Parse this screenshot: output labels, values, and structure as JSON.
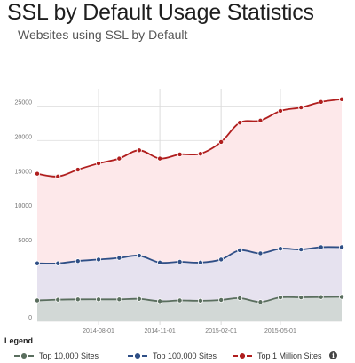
{
  "header": {
    "title": "SSL by Default Usage Statistics",
    "subtitle": "Websites using SSL by Default"
  },
  "legend": {
    "title": "Legend",
    "items": [
      {
        "label": "Top 10,000 Sites",
        "color": "#5a6e5e"
      },
      {
        "label": "Top 100,000 Sites",
        "color": "#2f4f86"
      },
      {
        "label": "Top 1 Million Sites",
        "color": "#b01e1e"
      }
    ],
    "info_icon": "info-icon"
  },
  "chart_data": {
    "type": "area",
    "x": [
      "2014-05-01",
      "2014-06-01",
      "2014-07-01",
      "2014-08-01",
      "2014-09-01",
      "2014-10-01",
      "2014-11-01",
      "2014-12-01",
      "2015-01-01",
      "2015-02-01",
      "2015-03-01",
      "2015-04-01",
      "2015-05-01",
      "2015-06-01",
      "2015-07-01",
      "2015-08-01"
    ],
    "x_ticks": [
      "2014-08-01",
      "2014-11-01",
      "2015-02-01",
      "2015-05-01"
    ],
    "y_ticks": [
      0,
      5000,
      10000,
      15000,
      20000,
      25000
    ],
    "ylim": [
      0,
      27000
    ],
    "series": [
      {
        "name": "Top 1 Million Sites",
        "color": "#b01e1e",
        "fill": "#fde8ea",
        "values": [
          15200,
          14800,
          15800,
          16700,
          17400,
          18600,
          17400,
          18000,
          18100,
          19800,
          22600,
          22900,
          24300,
          24800,
          25600,
          26000
        ]
      },
      {
        "name": "Top 100,000 Sites",
        "color": "#2f4f86",
        "fill": "#e6e2ef",
        "values": [
          3750,
          3750,
          3900,
          4000,
          4100,
          4250,
          3800,
          3850,
          3800,
          4000,
          4600,
          4400,
          4700,
          4650,
          4800,
          4800
        ]
      },
      {
        "name": "Top 10,000 Sites",
        "color": "#5a6e5e",
        "fill": "#d2d8d6",
        "values": [
          1350,
          1400,
          1420,
          1420,
          1420,
          1450,
          1300,
          1350,
          1330,
          1380,
          1500,
          1250,
          1550,
          1550,
          1570,
          1580
        ]
      }
    ],
    "grid": true
  }
}
